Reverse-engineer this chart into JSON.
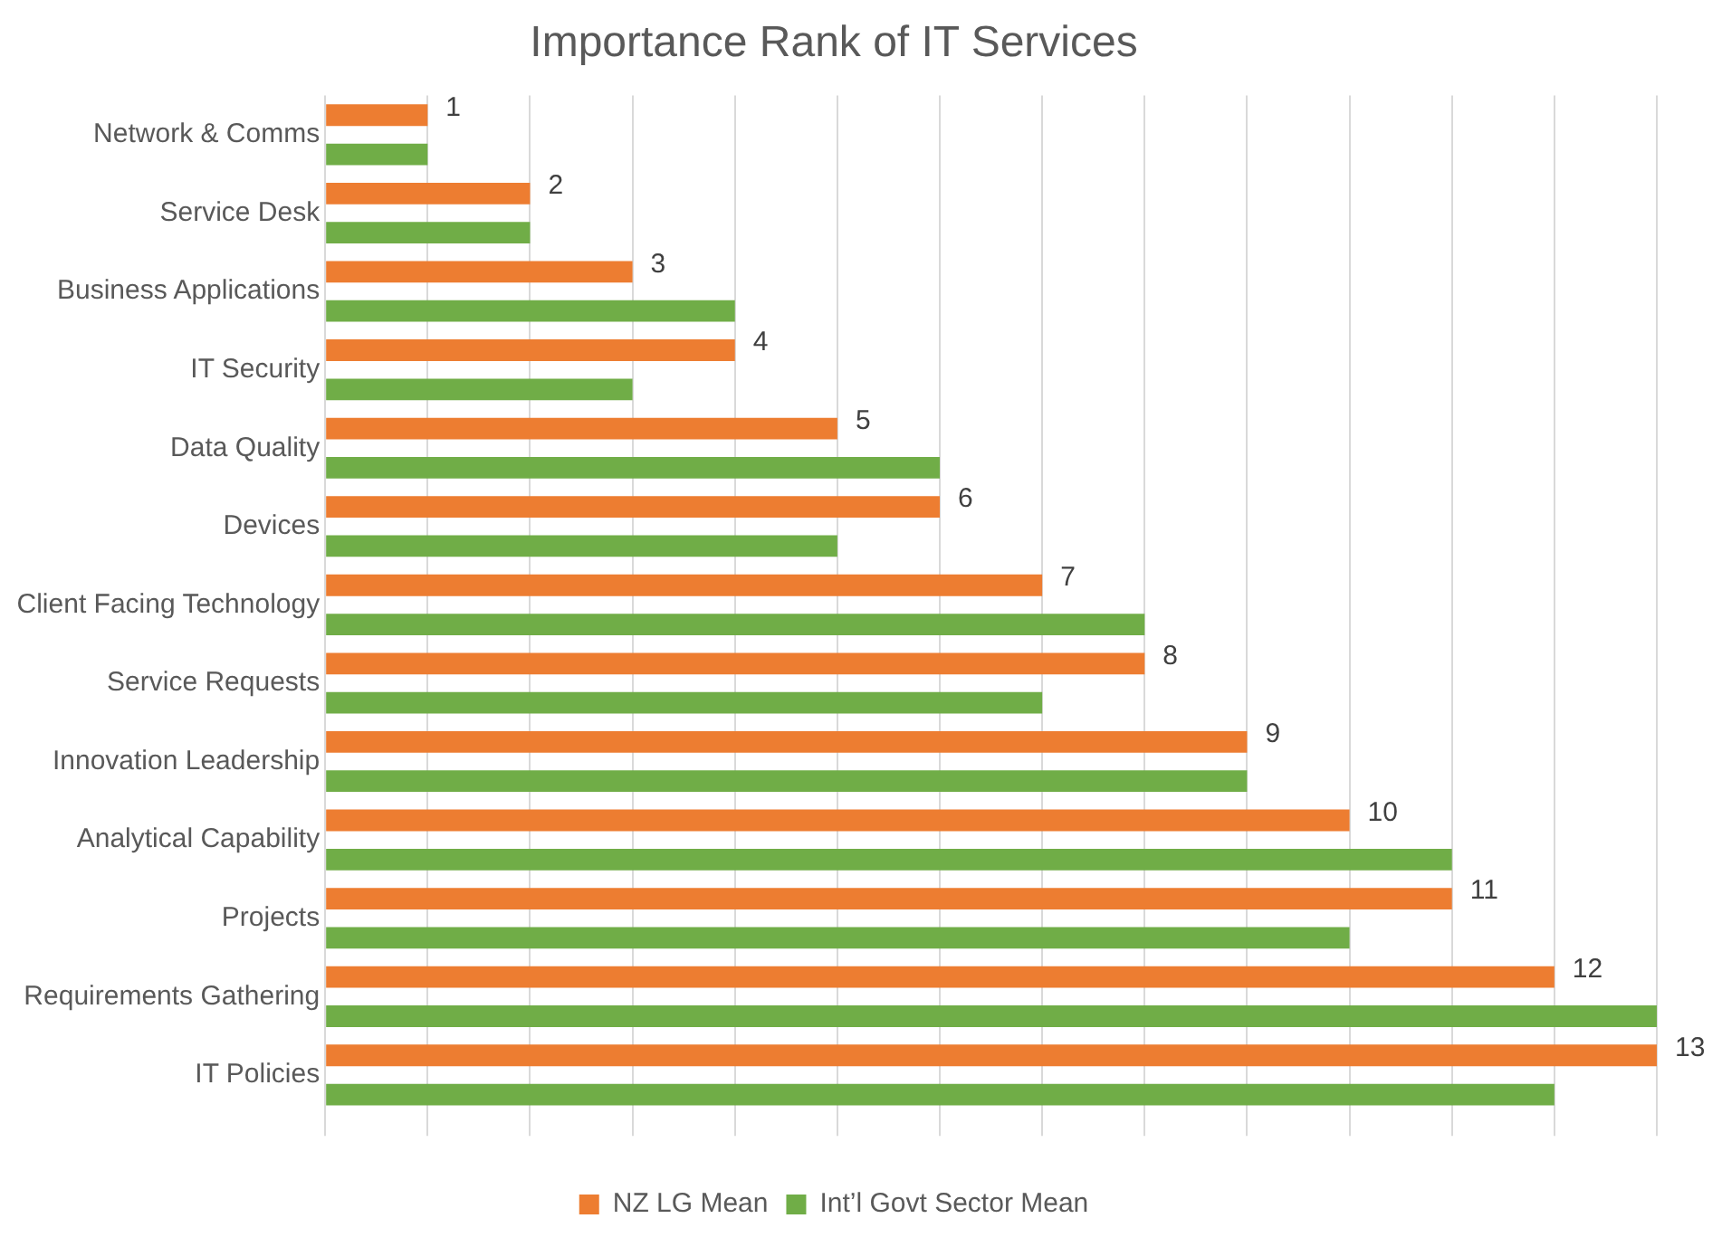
{
  "chart_data": {
    "type": "bar",
    "orientation": "horizontal",
    "title": "Importance Rank of IT Services",
    "categories": [
      "Network & Comms",
      "Service Desk",
      "Business Applications",
      "IT Security",
      "Data Quality",
      "Devices",
      "Client Facing Technology",
      "Service Requests",
      "Innovation Leadership",
      "Analytical Capability",
      "Projects",
      "Requirements Gathering",
      "IT Policies"
    ],
    "series": [
      {
        "name": "NZ LG Mean",
        "color": "#ed7d31",
        "values": [
          1,
          2,
          3,
          4,
          5,
          6,
          7,
          8,
          9,
          10,
          11,
          12,
          13
        ],
        "value_labels": [
          "1",
          "2",
          "3",
          "4",
          "5",
          "6",
          "7",
          "8",
          "9",
          "10",
          "11",
          "12",
          "13"
        ]
      },
      {
        "name": "Int’l Govt Sector Mean",
        "color": "#70ad47",
        "values": [
          1,
          2,
          4,
          3,
          6,
          5,
          8,
          7,
          9,
          11,
          10,
          13,
          12
        ]
      }
    ],
    "xlim": [
      0,
      13
    ],
    "xticks": [
      {
        "value": 0,
        "label": null
      },
      {
        "value": 1,
        "label": null
      },
      {
        "value": 2,
        "label": null
      },
      {
        "value": 3,
        "label": null
      },
      {
        "value": 4,
        "label": null
      },
      {
        "value": 5,
        "label": null
      },
      {
        "value": 6,
        "label": null
      },
      {
        "value": 7,
        "label": null
      },
      {
        "value": 8,
        "label": null
      },
      {
        "value": 9,
        "label": null
      },
      {
        "value": 10,
        "label": null
      },
      {
        "value": 11,
        "label": null
      },
      {
        "value": 12,
        "label": null
      },
      {
        "value": 13,
        "label": null
      }
    ],
    "grid": "x",
    "legend": "bottom"
  }
}
